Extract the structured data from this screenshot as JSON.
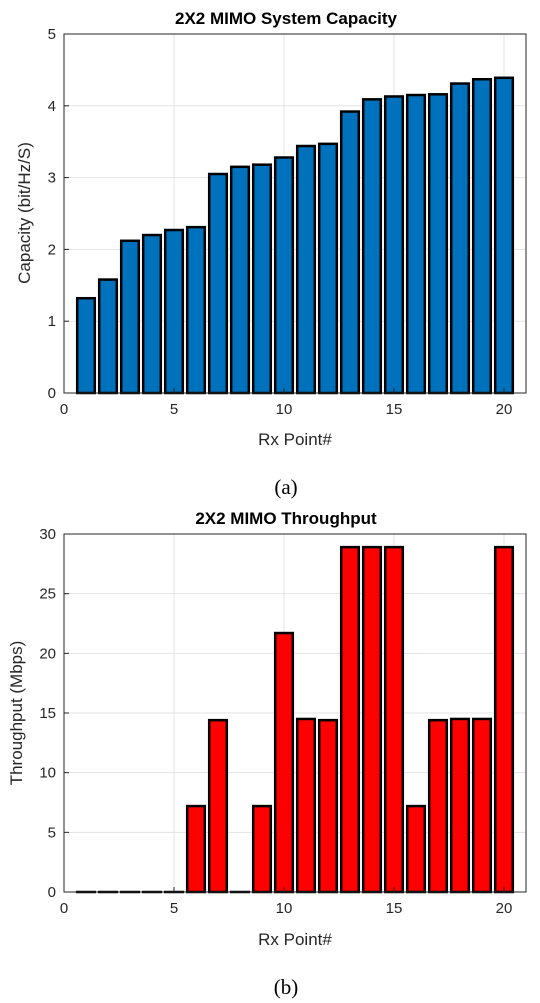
{
  "chart_data": [
    {
      "type": "bar",
      "title": "2X2 MIMO System Capacity",
      "xlabel": "Rx Point#",
      "ylabel": "Capacity (bit/Hz/S)",
      "caption": "(a)",
      "x": [
        1,
        2,
        3,
        4,
        5,
        6,
        7,
        8,
        9,
        10,
        11,
        12,
        13,
        14,
        15,
        16,
        17,
        18,
        19,
        20
      ],
      "values": [
        1.32,
        1.58,
        2.12,
        2.2,
        2.27,
        2.31,
        3.05,
        3.15,
        3.18,
        3.28,
        3.44,
        3.47,
        3.92,
        4.09,
        4.13,
        4.15,
        4.16,
        4.31,
        4.37,
        4.39
      ],
      "xlim": [
        0,
        21
      ],
      "ylim": [
        0,
        5
      ],
      "xticks": [
        0,
        5,
        10,
        15,
        20
      ],
      "yticks": [
        0,
        1,
        2,
        3,
        4,
        5
      ],
      "color": "#0072bd",
      "grid": true
    },
    {
      "type": "bar",
      "title": "2X2 MIMO Throughput",
      "xlabel": "Rx Point#",
      "ylabel": "Throughput (Mbps)",
      "caption": "(b)",
      "x": [
        1,
        2,
        3,
        4,
        5,
        6,
        7,
        8,
        9,
        10,
        11,
        12,
        13,
        14,
        15,
        16,
        17,
        18,
        19,
        20
      ],
      "values": [
        0,
        0,
        0,
        0,
        0,
        7.2,
        14.4,
        0,
        7.2,
        21.7,
        14.5,
        14.4,
        28.9,
        28.9,
        28.9,
        7.2,
        14.4,
        14.5,
        14.5,
        28.9
      ],
      "xlim": [
        0,
        21
      ],
      "ylim": [
        0,
        30
      ],
      "xticks": [
        0,
        5,
        10,
        15,
        20
      ],
      "yticks": [
        0,
        5,
        10,
        15,
        20,
        25,
        30
      ],
      "color": "#ff0000",
      "grid": true
    }
  ]
}
